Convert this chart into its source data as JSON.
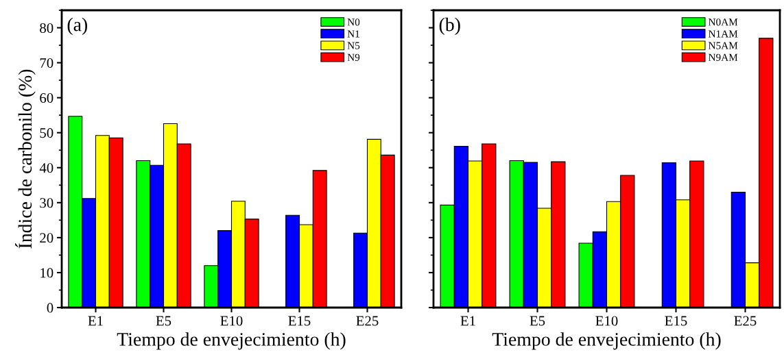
{
  "chart_data": [
    {
      "type": "bar",
      "categories": [
        "E1",
        "E5",
        "E10",
        "E15",
        "E25"
      ],
      "xlabel": "Tiempo de envejecimiento (h)",
      "ylabel": "Índice de carbonilo (%)",
      "annotations": [
        "(a)"
      ],
      "ylim": [
        0,
        85
      ],
      "yticks": [
        0,
        10,
        20,
        30,
        40,
        50,
        60,
        70,
        80
      ],
      "legend": "top right",
      "grid": false,
      "series": [
        {
          "name": "N0",
          "color": "#00ff00",
          "values": [
            54.7,
            42.0,
            12.0,
            null,
            null
          ]
        },
        {
          "name": "N1",
          "color": "#0000ff",
          "values": [
            31.2,
            40.7,
            22.0,
            26.4,
            21.3
          ]
        },
        {
          "name": "N5",
          "color": "#ffff00",
          "values": [
            49.2,
            52.6,
            30.4,
            23.7,
            48.1
          ]
        },
        {
          "name": "N9",
          "color": "#ff0000",
          "values": [
            48.5,
            46.8,
            25.3,
            39.2,
            43.6
          ]
        }
      ]
    },
    {
      "type": "bar",
      "categories": [
        "E1",
        "E5",
        "E10",
        "E15",
        "E25"
      ],
      "xlabel": "Tiempo de envejecimiento (h)",
      "annotations": [
        "(b)"
      ],
      "ylim": [
        0,
        85
      ],
      "yticks": [
        0,
        10,
        20,
        30,
        40,
        50,
        60,
        70,
        80
      ],
      "tick_labels": "x",
      "legend": "top right",
      "grid": false,
      "series": [
        {
          "name": "N0AM",
          "color": "#00ff00",
          "values": [
            29.3,
            42.0,
            18.4,
            null,
            null
          ]
        },
        {
          "name": "N1AM",
          "color": "#0000ff",
          "values": [
            46.1,
            41.5,
            21.7,
            41.4,
            33.0
          ]
        },
        {
          "name": "N5AM",
          "color": "#ffff00",
          "values": [
            41.9,
            28.4,
            30.3,
            30.8,
            12.8
          ]
        },
        {
          "name": "N9AM",
          "color": "#ff0000",
          "values": [
            46.8,
            41.7,
            37.8,
            41.9,
            77.0
          ]
        }
      ]
    }
  ]
}
